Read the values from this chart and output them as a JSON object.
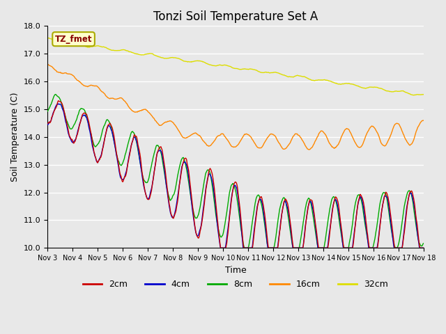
{
  "title": "Tonzi Soil Temperature Set A",
  "xlabel": "Time",
  "ylabel": "Soil Temperature (C)",
  "ylim": [
    10.0,
    18.0
  ],
  "yticks": [
    10.0,
    11.0,
    12.0,
    13.0,
    14.0,
    15.0,
    16.0,
    17.0,
    18.0
  ],
  "xtick_labels": [
    "Nov 3",
    "Nov 4",
    "Nov 5",
    "Nov 6",
    "Nov 7",
    "Nov 8",
    "Nov 9",
    "Nov 10",
    "Nov 11",
    "Nov 12",
    "Nov 13",
    "Nov 14",
    "Nov 15",
    "Nov 16",
    "Nov 17",
    "Nov 18"
  ],
  "legend_labels": [
    "2cm",
    "4cm",
    "8cm",
    "16cm",
    "32cm"
  ],
  "line_colors": [
    "#cc0000",
    "#0000cc",
    "#00aa00",
    "#ff8800",
    "#dddd00"
  ],
  "annotation_text": "TZ_fmet",
  "annotation_color": "#880000",
  "annotation_bg": "#ffffcc",
  "annotation_edge": "#aaaa00",
  "background_color": "#e8e8e8",
  "plot_bg": "#e8e8e8",
  "grid_color": "#ffffff",
  "n_days": 15,
  "points_per_day": 48,
  "title_fontsize": 12,
  "label_fontsize": 9,
  "tick_fontsize": 8
}
